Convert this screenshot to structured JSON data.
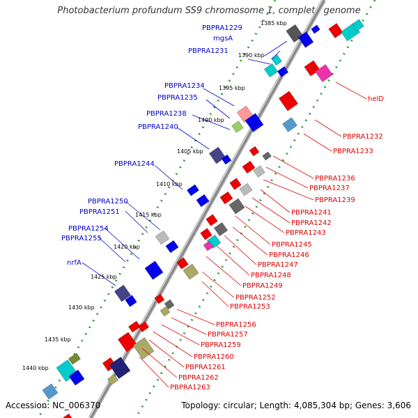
{
  "title": "Photobacterium profundum SS9 chromosome 1, complete genome",
  "footer": {
    "accession": "Accession: NC_006370",
    "summary": "Topology: circular; Length: 4,085,304 bp; Genes: 3,606"
  },
  "colors": {
    "backbone": "#888888",
    "forward_label": "#0000cc",
    "reverse_label": "#dd0000",
    "ruler_dots": "#339933"
  },
  "ruler": [
    "1385 kbp",
    "1390 kbp",
    "1395 kbp",
    "1400 kbp",
    "1405 kbp",
    "1410 kbp",
    "1415 kbp",
    "1420 kbp",
    "1425 kbp",
    "1430 kbp",
    "1435 kbp",
    "1440 kbp"
  ],
  "forward_labels": [
    "PBPRA1229",
    "mgsA",
    "PBPRA1231",
    "PBPRA1234",
    "PBPRA1235",
    "PBPRA1238",
    "PBPRA1240",
    "PBPRA1244",
    "PBPRA1250",
    "PBPRA1251",
    "PBPRA1254",
    "PBPRA1255",
    "nrfA"
  ],
  "reverse_labels": [
    "helD",
    "PBPRA1232",
    "PBPRA1233",
    "PBPRA1236",
    "PBPRA1237",
    "PBPRA1239",
    "PBPRA1241",
    "PBPRA1242",
    "PBPRA1243",
    "PBPRA1245",
    "PBPRA1246",
    "PBPRA1247",
    "PBPRA1248",
    "PBPRA1249",
    "PBPRA1252",
    "PBPRA1253",
    "PBPRA1256",
    "PBPRA1257",
    "PBPRA1259",
    "PBPRA1260",
    "PBPRA1261",
    "PBPRA1262",
    "PBPRA1263"
  ]
}
